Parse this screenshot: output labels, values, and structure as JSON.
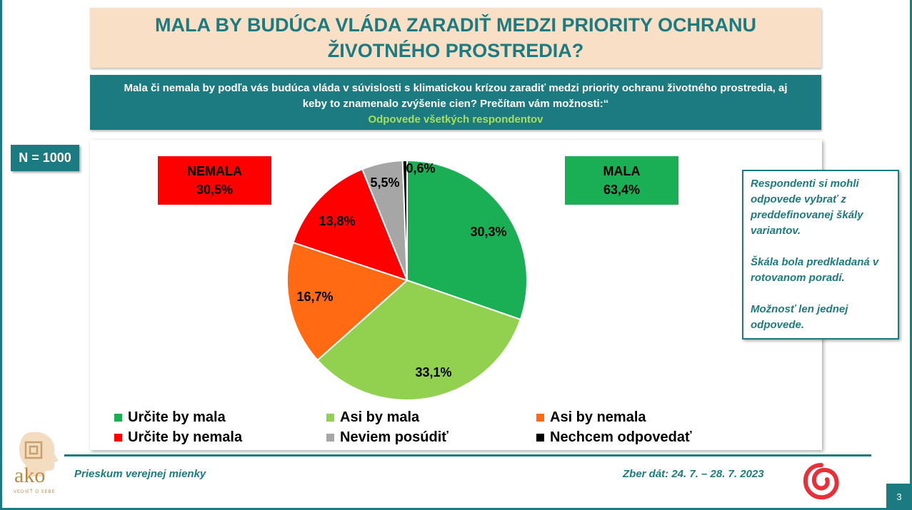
{
  "title": "MALA BY BUDÚCA VLÁDA ZARADIŤ MEDZI PRIORITY OCHRANU ŽIVOTNÉHO PROSTREDIA?",
  "question": "Mala či nemala by podľa vás budúca vláda v súvislosti s klimatickou krízou zaradiť medzi priority ochranu životného prostredia, aj keby to znamenalo zvýšenie cien? Prečítam vám možnosti:“",
  "respondents": "Odpovede všetkých respondentov",
  "sample": "N = 1000",
  "groups": {
    "nemala": {
      "label": "NEMALA",
      "value": "30,5%"
    },
    "mala": {
      "label": "MALA",
      "value": "63,4%"
    }
  },
  "chart_data": {
    "type": "pie",
    "title": "",
    "slices": [
      {
        "name": "Určite by mala",
        "value": 30.3,
        "label": "30,3%",
        "color": "#1aaf54"
      },
      {
        "name": "Asi by mala",
        "value": 33.1,
        "label": "33,1%",
        "color": "#92d050"
      },
      {
        "name": "Asi by nemala",
        "value": 16.7,
        "label": "16,7%",
        "color": "#ff6a13"
      },
      {
        "name": "Určite by nemala",
        "value": 13.8,
        "label": "13,8%",
        "color": "#ff0000"
      },
      {
        "name": "Neviem posúdiť",
        "value": 5.5,
        "label": "5,5%",
        "color": "#a6a6a6"
      },
      {
        "name": "Nechcem odpovedať",
        "value": 0.6,
        "label": "0,6%",
        "color": "#000000"
      }
    ],
    "start": "top",
    "direction": "clockwise",
    "legend": "bottom"
  },
  "legend_items": [
    "Určite by mala",
    "Asi by mala",
    "Asi by nemala",
    "Určite by nemala",
    "Neviem posúdiť",
    "Nechcem odpovedať"
  ],
  "note": {
    "p1": "Respondenti si mohli odpovede vybrať z preddefinovanej škály variantov.",
    "p2": "Škála bola predkladaná v rotovanom poradí.",
    "p3": "Možnosť len jednej odpovede."
  },
  "footer": {
    "left": "Prieskum verejnej mienky",
    "right": "Zber dát: 24. 7. – 28. 7. 2023",
    "page": "3"
  },
  "logo": {
    "name": "ako",
    "tagline": "VEDIEŤ O SEBE",
    "icon": "head-profile-icon"
  },
  "colors": {
    "accent": "#1b7b80",
    "title_bg": "#f8dfc5",
    "subtitle": "#a6e05a"
  }
}
